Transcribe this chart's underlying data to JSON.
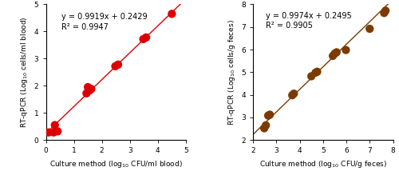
{
  "panel_a": {
    "scatter_x": [
      0.1,
      0.28,
      0.32,
      0.42,
      1.45,
      1.5,
      1.55,
      1.62,
      2.48,
      2.58,
      3.48,
      3.58,
      4.5
    ],
    "scatter_y": [
      0.28,
      0.28,
      0.55,
      0.32,
      1.72,
      1.95,
      1.82,
      1.88,
      2.72,
      2.78,
      3.72,
      3.78,
      4.65
    ],
    "slope": 0.9919,
    "intercept": 0.2429,
    "r2": 0.9947,
    "xlim": [
      0,
      5
    ],
    "ylim": [
      0,
      5
    ],
    "xticks": [
      0,
      1,
      2,
      3,
      4,
      5
    ],
    "yticks": [
      0,
      1,
      2,
      3,
      4,
      5
    ],
    "xlabel": "Culture method (log$_{10}$ CFU/ml blood)",
    "ylabel": "RT-qPCR (Log$_{10}$ cells/ml blood)",
    "color": "#dd0000",
    "eq_text": "y = 0.9919x + 0.2429",
    "r2_text": "R² = 0.9947",
    "eq_x": 0.55,
    "eq_y": 4.68
  },
  "panel_b": {
    "scatter_x": [
      2.48,
      2.55,
      2.65,
      2.72,
      3.68,
      3.75,
      4.5,
      4.68,
      4.75,
      5.42,
      5.5,
      5.58,
      5.98,
      7.0,
      7.62,
      7.68
    ],
    "scatter_y": [
      2.52,
      2.65,
      3.08,
      3.12,
      3.98,
      4.05,
      4.82,
      4.98,
      5.02,
      5.72,
      5.82,
      5.88,
      5.98,
      6.92,
      7.62,
      7.72
    ],
    "slope": 0.9974,
    "intercept": 0.2495,
    "r2": 0.9905,
    "xlim": [
      2,
      8
    ],
    "ylim": [
      2,
      8
    ],
    "xticks": [
      2,
      3,
      4,
      5,
      6,
      7,
      8
    ],
    "yticks": [
      2,
      3,
      4,
      5,
      6,
      7,
      8
    ],
    "xlabel": "Culture method (log$_{10}$ CFU/g feces)",
    "ylabel": "RT-qPCR (Log$_{10}$ cells/g feces)",
    "color": "#7b3a00",
    "eq_text": "y = 0.9974x + 0.2495",
    "r2_text": "R² = 0.9905",
    "eq_x": 2.55,
    "eq_y": 7.68
  },
  "background_color": "#ffffff",
  "marker_size": 55,
  "line_width": 1.0,
  "font_size_label": 6.5,
  "font_size_annot": 7.0,
  "font_size_tick": 6.5
}
